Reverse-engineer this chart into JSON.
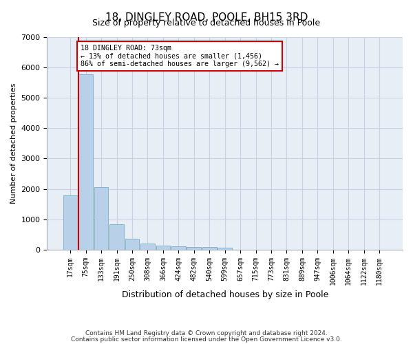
{
  "title": "18, DINGLEY ROAD, POOLE, BH15 3RD",
  "subtitle": "Size of property relative to detached houses in Poole",
  "xlabel": "Distribution of detached houses by size in Poole",
  "ylabel": "Number of detached properties",
  "footnote1": "Contains HM Land Registry data © Crown copyright and database right 2024.",
  "footnote2": "Contains public sector information licensed under the Open Government Licence v3.0.",
  "bar_labels": [
    "17sqm",
    "75sqm",
    "133sqm",
    "191sqm",
    "250sqm",
    "308sqm",
    "366sqm",
    "424sqm",
    "482sqm",
    "540sqm",
    "599sqm",
    "657sqm",
    "715sqm",
    "773sqm",
    "831sqm",
    "889sqm",
    "947sqm",
    "1006sqm",
    "1064sqm",
    "1122sqm",
    "1180sqm"
  ],
  "bar_values": [
    1780,
    5780,
    2060,
    830,
    350,
    195,
    130,
    110,
    95,
    90,
    70,
    0,
    0,
    0,
    0,
    0,
    0,
    0,
    0,
    0,
    0
  ],
  "bar_color": "#b8d0e8",
  "bar_edgecolor": "#7aaacf",
  "property_line_x": 0.525,
  "annotation_text": "18 DINGLEY ROAD: 73sqm\n← 13% of detached houses are smaller (1,456)\n86% of semi-detached houses are larger (9,562) →",
  "annotation_box_color": "#ffffff",
  "annotation_box_edgecolor": "#cc0000",
  "vline_color": "#cc0000",
  "ylim": [
    0,
    7000
  ],
  "yticks": [
    0,
    1000,
    2000,
    3000,
    4000,
    5000,
    6000,
    7000
  ],
  "grid_color": "#c8d4e4",
  "background_color": "#e8eef6",
  "figsize": [
    6.0,
    5.0
  ],
  "dpi": 100
}
